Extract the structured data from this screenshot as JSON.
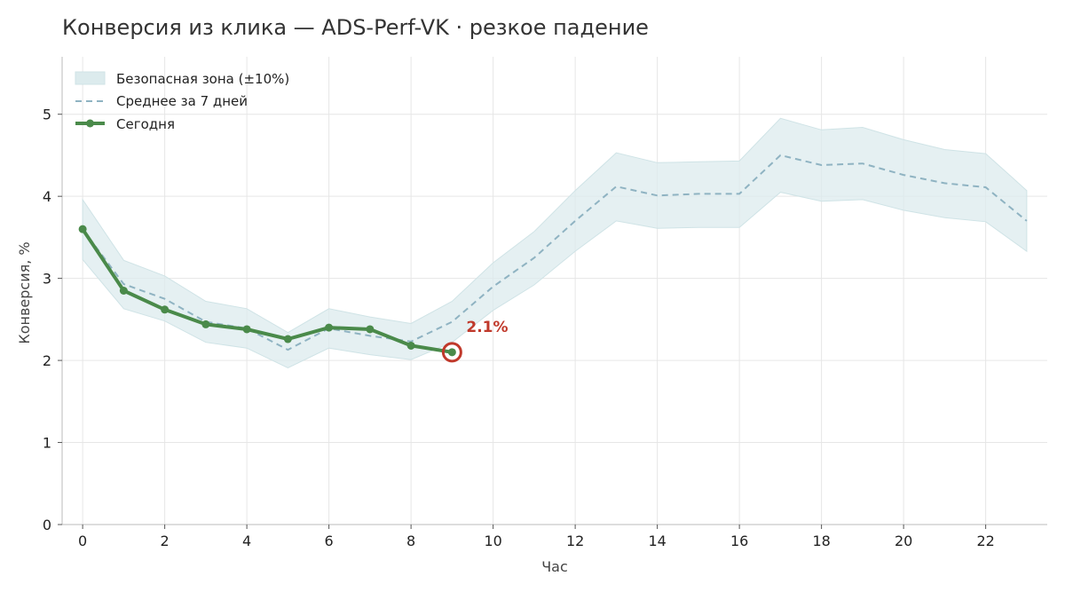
{
  "chart_data": {
    "type": "line",
    "title": "Конверсия из клика — ADS-Perf-VK · резкое падение",
    "xlabel": "Час",
    "ylabel": "Конверсия, %",
    "xlim": [
      -0.5,
      23.5
    ],
    "ylim": [
      0,
      5.7
    ],
    "x_ticks": [
      0,
      2,
      4,
      6,
      8,
      10,
      12,
      14,
      16,
      18,
      20,
      22
    ],
    "y_ticks": [
      0,
      1,
      2,
      3,
      4,
      5
    ],
    "grid": true,
    "legend_position": "top-left",
    "band": {
      "name": "Безопасная зона (±10%)",
      "x": [
        0,
        1,
        2,
        3,
        4,
        5,
        6,
        7,
        8,
        9,
        10,
        11,
        12,
        13,
        14,
        15,
        16,
        17,
        18,
        19,
        20,
        21,
        22,
        23
      ],
      "lower": [
        3.23,
        2.63,
        2.48,
        2.22,
        2.15,
        1.91,
        2.15,
        2.07,
        2.01,
        2.22,
        2.61,
        2.92,
        3.33,
        3.7,
        3.61,
        3.62,
        3.62,
        4.05,
        3.94,
        3.96,
        3.83,
        3.74,
        3.69,
        3.33
      ],
      "upper": [
        3.96,
        3.22,
        3.03,
        2.72,
        2.63,
        2.34,
        2.63,
        2.53,
        2.45,
        2.72,
        3.19,
        3.57,
        4.07,
        4.53,
        4.41,
        4.42,
        4.43,
        4.95,
        4.81,
        4.84,
        4.69,
        4.57,
        4.52,
        4.07
      ],
      "color": "#dcebed"
    },
    "series": [
      {
        "name": "Среднее за 7 дней",
        "style": "dashed",
        "color": "#8fb3c2",
        "x": [
          0,
          1,
          2,
          3,
          4,
          5,
          6,
          7,
          8,
          9,
          10,
          11,
          12,
          13,
          14,
          15,
          16,
          17,
          18,
          19,
          20,
          21,
          22,
          23
        ],
        "values": [
          3.6,
          2.93,
          2.75,
          2.47,
          2.39,
          2.13,
          2.39,
          2.3,
          2.23,
          2.47,
          2.9,
          3.25,
          3.7,
          4.12,
          4.01,
          4.03,
          4.03,
          4.5,
          4.38,
          4.4,
          4.26,
          4.16,
          4.11,
          3.7
        ]
      },
      {
        "name": "Сегодня",
        "style": "solid",
        "color": "#4a8a4a",
        "x": [
          0,
          1,
          2,
          3,
          4,
          5,
          6,
          7,
          8,
          9
        ],
        "values": [
          3.6,
          2.85,
          2.62,
          2.44,
          2.38,
          2.26,
          2.4,
          2.38,
          2.18,
          2.1
        ]
      }
    ],
    "annotation": {
      "text": "2.1%",
      "x": 9,
      "y": 2.1,
      "color": "#c0392b"
    }
  }
}
